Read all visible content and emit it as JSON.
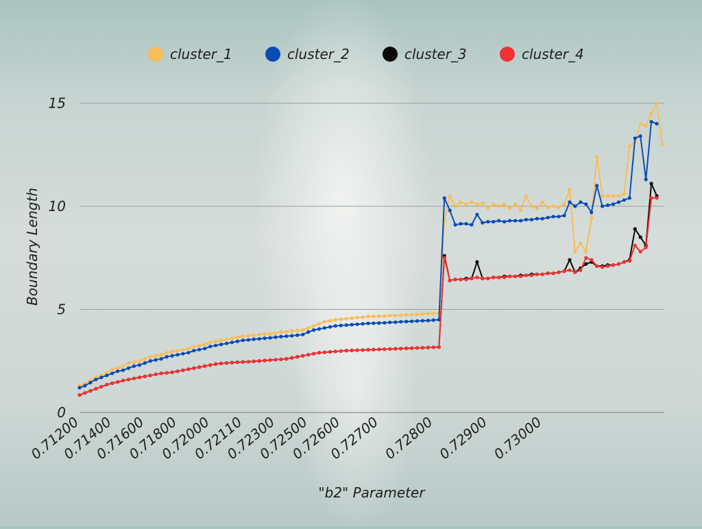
{
  "chart_data": {
    "type": "line",
    "xlabel": "\"b2\" Parameter",
    "ylabel": "Boundary Length",
    "ylim": [
      0,
      16
    ],
    "yticks": [
      0,
      5,
      10,
      15
    ],
    "xtick_labels": [
      "0.71200",
      "0.71400",
      "0.71600",
      "0.71800",
      "0.72000",
      "0.72110",
      "0.72300",
      "0.72500",
      "0.72600",
      "0.72700",
      "0.72800",
      "0.72900",
      "0.73000"
    ],
    "xtick_index": [
      0,
      6,
      12,
      18,
      24,
      30,
      36,
      42,
      48,
      55,
      65,
      75,
      85
    ],
    "grid": true,
    "legend_position": "top",
    "series": [
      {
        "name": "cluster_1",
        "color": "#f8bd5a",
        "values": [
          1.3,
          1.4,
          1.55,
          1.7,
          1.8,
          1.95,
          2.1,
          2.15,
          2.25,
          2.4,
          2.45,
          2.5,
          2.6,
          2.7,
          2.75,
          2.8,
          2.9,
          2.95,
          3.0,
          3.05,
          3.1,
          3.2,
          3.25,
          3.3,
          3.4,
          3.45,
          3.5,
          3.55,
          3.6,
          3.65,
          3.7,
          3.72,
          3.75,
          3.78,
          3.8,
          3.82,
          3.85,
          3.9,
          3.92,
          3.95,
          3.98,
          4.0,
          4.1,
          4.2,
          4.3,
          4.4,
          4.45,
          4.5,
          4.52,
          4.55,
          4.57,
          4.6,
          4.62,
          4.65,
          4.66,
          4.67,
          4.68,
          4.7,
          4.7,
          4.72,
          4.73,
          4.75,
          4.76,
          4.78,
          4.8,
          4.8,
          4.82,
          9.3,
          10.5,
          10.0,
          10.2,
          10.1,
          10.2,
          10.1,
          10.15,
          9.9,
          10.1,
          10.0,
          10.1,
          9.9,
          10.1,
          9.8,
          10.5,
          10.0,
          9.9,
          10.2,
          9.95,
          10.0,
          9.95,
          10.1,
          10.8,
          7.8,
          8.2,
          7.8,
          9.4,
          12.4,
          10.5,
          10.5,
          10.5,
          10.5,
          10.6,
          12.9,
          13.1,
          14.0,
          13.9,
          14.5,
          15.0,
          13.0
        ]
      },
      {
        "name": "cluster_2",
        "color": "#0a4bb4",
        "values": [
          1.2,
          1.3,
          1.45,
          1.6,
          1.7,
          1.8,
          1.9,
          2.0,
          2.05,
          2.15,
          2.25,
          2.3,
          2.4,
          2.5,
          2.55,
          2.6,
          2.7,
          2.75,
          2.8,
          2.85,
          2.9,
          3.0,
          3.05,
          3.1,
          3.2,
          3.25,
          3.3,
          3.35,
          3.4,
          3.45,
          3.5,
          3.52,
          3.55,
          3.57,
          3.6,
          3.62,
          3.65,
          3.68,
          3.7,
          3.72,
          3.75,
          3.78,
          3.9,
          4.0,
          4.05,
          4.1,
          4.15,
          4.2,
          4.22,
          4.24,
          4.26,
          4.28,
          4.3,
          4.32,
          4.33,
          4.34,
          4.35,
          4.37,
          4.38,
          4.4,
          4.41,
          4.42,
          4.44,
          4.45,
          4.46,
          4.48,
          4.5,
          10.4,
          9.8,
          9.1,
          9.15,
          9.15,
          9.1,
          9.6,
          9.2,
          9.25,
          9.25,
          9.3,
          9.25,
          9.3,
          9.3,
          9.3,
          9.35,
          9.35,
          9.4,
          9.4,
          9.45,
          9.5,
          9.5,
          9.55,
          10.2,
          10.0,
          10.2,
          10.1,
          9.7,
          11.0,
          10.0,
          10.05,
          10.1,
          10.2,
          10.3,
          10.4,
          13.3,
          13.4,
          11.3,
          14.1,
          14.0
        ]
      },
      {
        "name": "cluster_3",
        "color": "#0a0a0a",
        "values": [
          0.85,
          0.95,
          1.05,
          1.15,
          1.25,
          1.35,
          1.42,
          1.48,
          1.55,
          1.6,
          1.65,
          1.7,
          1.75,
          1.8,
          1.85,
          1.9,
          1.92,
          1.95,
          2.0,
          2.05,
          2.1,
          2.15,
          2.2,
          2.25,
          2.3,
          2.35,
          2.38,
          2.4,
          2.42,
          2.44,
          2.45,
          2.46,
          2.48,
          2.5,
          2.52,
          2.54,
          2.56,
          2.58,
          2.6,
          2.65,
          2.7,
          2.75,
          2.8,
          2.85,
          2.9,
          2.92,
          2.94,
          2.96,
          2.98,
          3.0,
          3.01,
          3.02,
          3.03,
          3.04,
          3.05,
          3.06,
          3.07,
          3.08,
          3.09,
          3.1,
          3.11,
          3.12,
          3.13,
          3.14,
          3.15,
          3.16,
          3.17,
          7.6,
          6.4,
          6.45,
          6.45,
          6.5,
          6.5,
          7.3,
          6.5,
          6.5,
          6.55,
          6.55,
          6.6,
          6.6,
          6.6,
          6.65,
          6.65,
          6.7,
          6.7,
          6.7,
          6.75,
          6.75,
          6.8,
          6.85,
          7.4,
          6.8,
          7.0,
          7.2,
          7.3,
          7.1,
          7.1,
          7.15,
          7.15,
          7.2,
          7.3,
          7.4,
          8.9,
          8.5,
          8.1,
          11.1,
          10.5
        ]
      },
      {
        "name": "cluster_4",
        "color": "#f03232",
        "values": [
          0.85,
          0.95,
          1.05,
          1.15,
          1.25,
          1.35,
          1.42,
          1.48,
          1.55,
          1.6,
          1.65,
          1.7,
          1.75,
          1.8,
          1.85,
          1.9,
          1.92,
          1.95,
          2.0,
          2.05,
          2.1,
          2.15,
          2.2,
          2.25,
          2.3,
          2.35,
          2.38,
          2.4,
          2.42,
          2.44,
          2.45,
          2.46,
          2.48,
          2.5,
          2.52,
          2.54,
          2.56,
          2.58,
          2.6,
          2.65,
          2.7,
          2.75,
          2.8,
          2.85,
          2.9,
          2.92,
          2.94,
          2.96,
          2.98,
          3.0,
          3.01,
          3.02,
          3.03,
          3.04,
          3.05,
          3.06,
          3.07,
          3.08,
          3.09,
          3.1,
          3.11,
          3.12,
          3.13,
          3.14,
          3.15,
          3.16,
          3.17,
          7.5,
          6.4,
          6.45,
          6.45,
          6.45,
          6.5,
          6.55,
          6.5,
          6.5,
          6.55,
          6.55,
          6.55,
          6.6,
          6.6,
          6.6,
          6.65,
          6.65,
          6.7,
          6.7,
          6.75,
          6.75,
          6.8,
          6.85,
          6.9,
          6.8,
          6.9,
          7.5,
          7.4,
          7.1,
          7.05,
          7.1,
          7.15,
          7.2,
          7.3,
          7.35,
          8.1,
          7.8,
          8.0,
          10.4,
          10.4
        ]
      }
    ]
  }
}
